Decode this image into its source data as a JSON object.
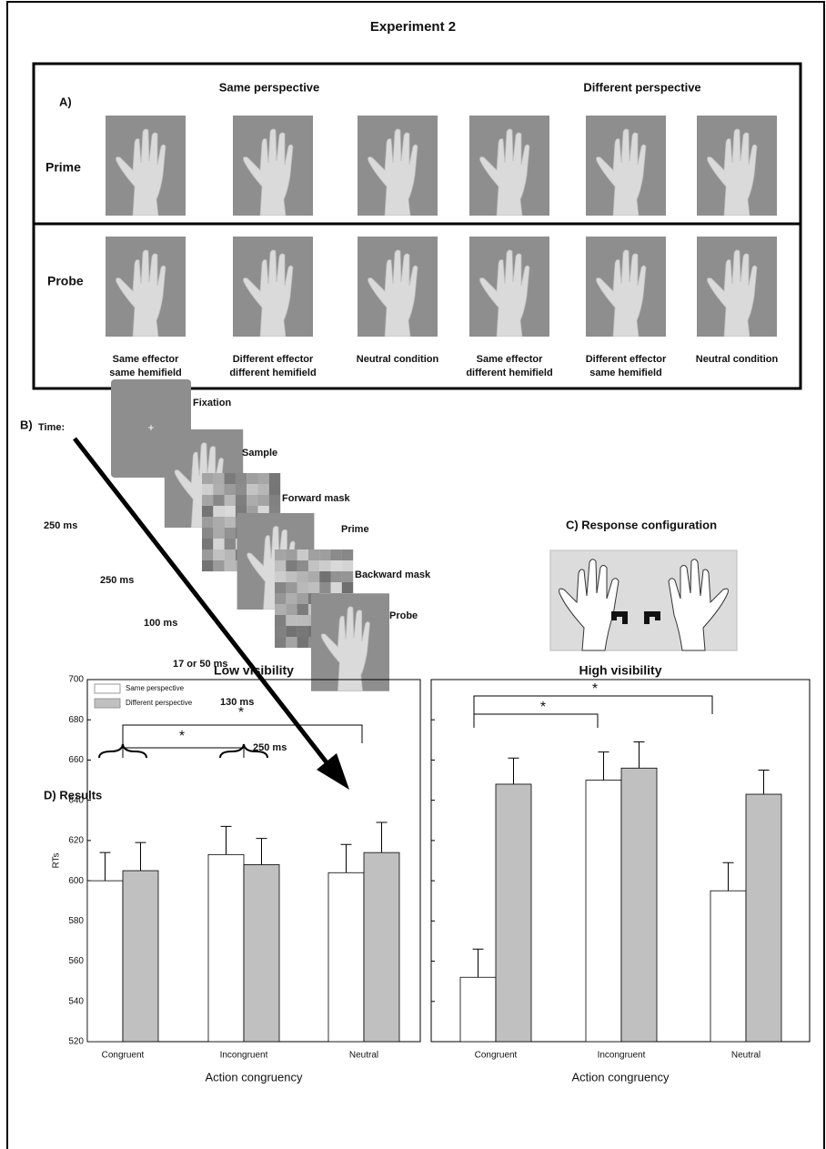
{
  "title": "Experiment 2",
  "panel_a": {
    "label": "A)",
    "groups": [
      "Same perspective",
      "Different perspective"
    ],
    "rows": [
      "Prime",
      "Probe"
    ],
    "captions": [
      [
        "Same effector",
        "same hemifield"
      ],
      [
        "Different effector",
        "different hemifield"
      ],
      [
        "Neutral condition"
      ],
      [
        "Same effector",
        "different hemifield"
      ],
      [
        "Different effector",
        "same hemifield"
      ],
      [
        "Neutral condition"
      ]
    ]
  },
  "panel_b": {
    "label": "B)",
    "time_label": "Time:",
    "stages": [
      "Fixation",
      "Sample",
      "Forward mask",
      "Prime",
      "Backward mask",
      "Probe"
    ],
    "durations": [
      "250 ms",
      "250 ms",
      "100 ms",
      "17 or 50 ms",
      "130 ms",
      "250 ms"
    ]
  },
  "panel_c": {
    "label": "C) Response configuration"
  },
  "panel_d": {
    "label": "D) Results"
  },
  "chart_data": [
    {
      "type": "bar",
      "title": "Low visibility",
      "categories": [
        "Congruent",
        "Incongruent",
        "Neutral"
      ],
      "series": [
        {
          "name": "Same perspective",
          "color": "#ffffff",
          "values": [
            600,
            613,
            604
          ],
          "errors": [
            14,
            14,
            14
          ]
        },
        {
          "name": "Different perspective",
          "color": "#c0c0c0",
          "values": [
            605,
            608,
            614
          ],
          "errors": [
            14,
            13,
            15
          ]
        }
      ],
      "ylim": [
        520,
        700
      ],
      "yticks": [
        520,
        540,
        560,
        580,
        600,
        620,
        640,
        660,
        680,
        700
      ],
      "y_label": "RTs",
      "x_label": "Action congruency",
      "legend": true,
      "annotations": [
        "*",
        "*"
      ]
    },
    {
      "type": "bar",
      "title": "High visibility",
      "categories": [
        "Congruent",
        "Incongruent",
        "Neutral"
      ],
      "series": [
        {
          "name": "Same perspective",
          "color": "#ffffff",
          "values": [
            552,
            650,
            595
          ],
          "errors": [
            14,
            14,
            14
          ]
        },
        {
          "name": "Different perspective",
          "color": "#c0c0c0",
          "values": [
            648,
            656,
            643
          ],
          "errors": [
            13,
            13,
            12
          ]
        }
      ],
      "ylim": [
        520,
        700
      ],
      "yticks": [
        520,
        540,
        560,
        580,
        600,
        620,
        640,
        660,
        680,
        700
      ],
      "x_label": "Action congruency",
      "legend": false,
      "annotations": [
        "*",
        "*"
      ]
    }
  ]
}
